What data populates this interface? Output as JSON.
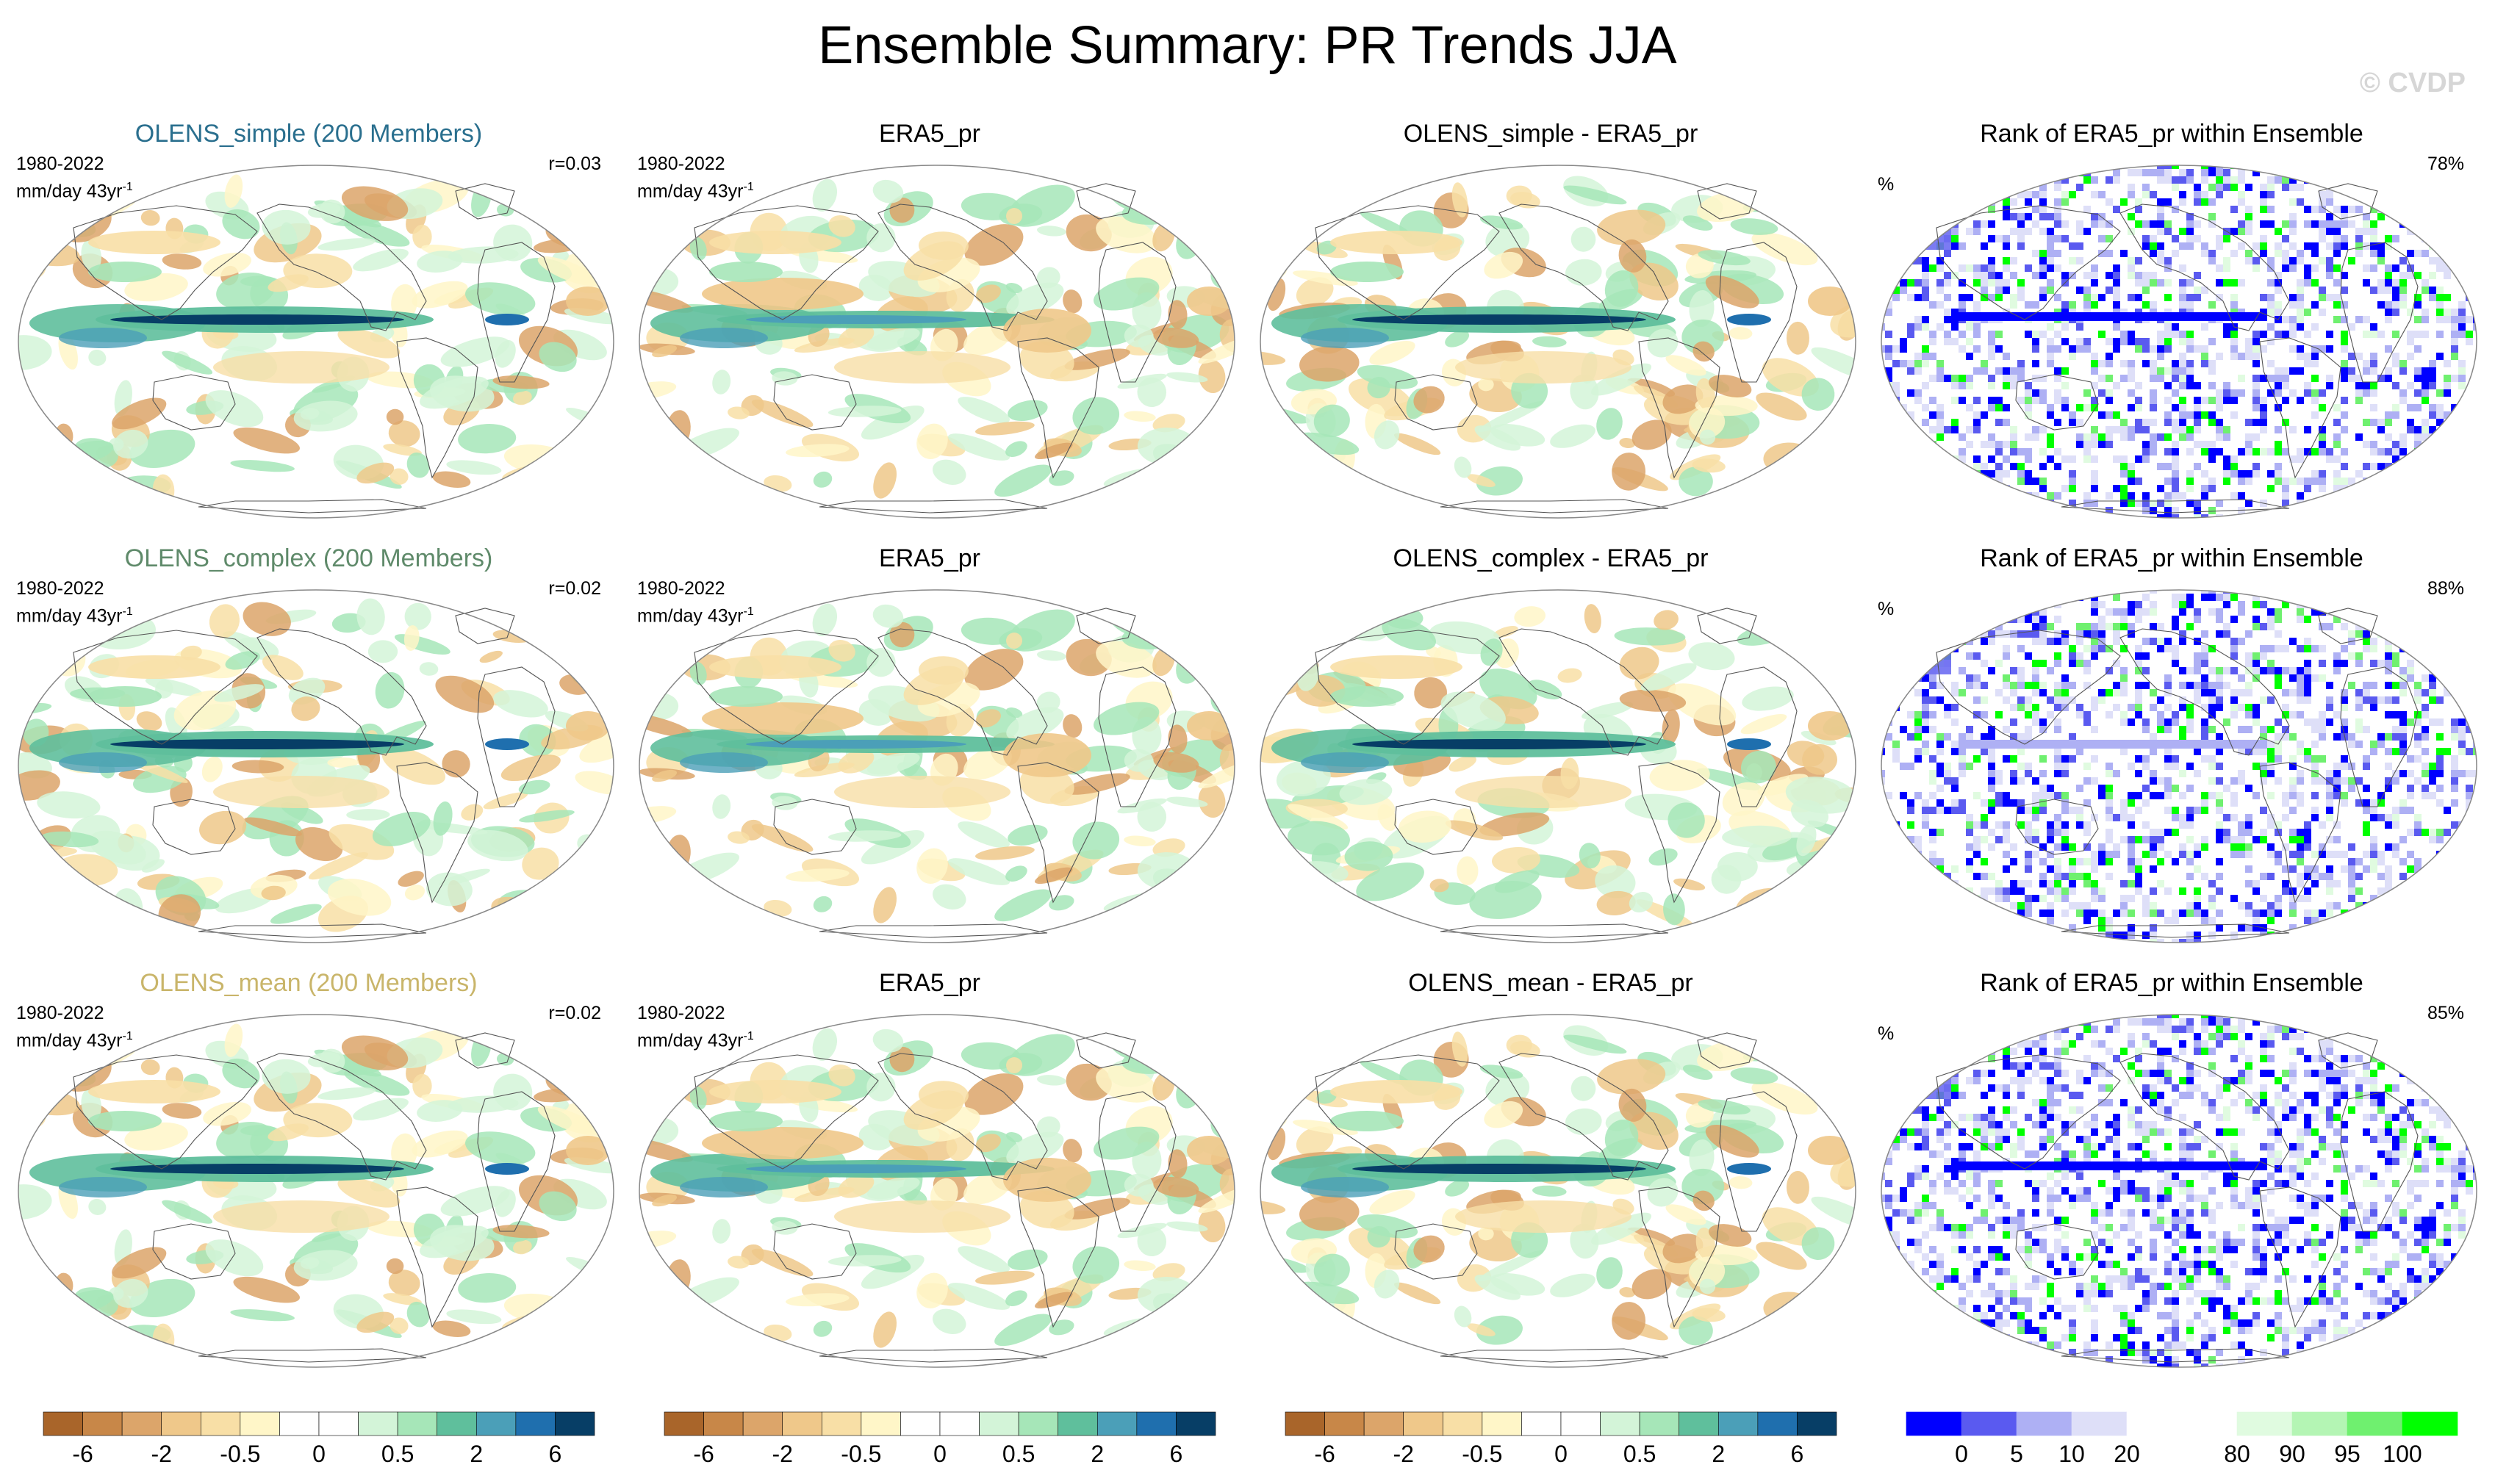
{
  "title": "Ensemble Summary: PR Trends JJA",
  "watermark": "© CVDP",
  "colors": {
    "title_simple": "#2a6f8e",
    "title_complex": "#5f8a6a",
    "title_mean": "#c9b56a",
    "trend_scale": [
      "#a9652a",
      "#c88748",
      "#dca56a",
      "#efc88a",
      "#f8dfa6",
      "#fff6c8",
      "#ffffff",
      "#ffffff",
      "#d3f4d8",
      "#a6e6b8",
      "#5fbf9c",
      "#4b9fb8",
      "#1f6fae",
      "#073e66"
    ],
    "rank_scale": [
      "#0000ff",
      "#5a5af0",
      "#aeb0f4",
      "#dedff8",
      "#ffffff",
      "#ffffff",
      "#e0fbe0",
      "#b4f5b4",
      "#6ff06f",
      "#00ff00"
    ]
  },
  "rows": [
    {
      "model_title": "OLENS_simple (200 Members)",
      "period": "1980-2022",
      "units": "mm/day 43yr",
      "units_sup": "-1",
      "pattern_corr": "r=0.03",
      "obs_title": "ERA5_pr",
      "diff_title": "OLENS_simple - ERA5_pr",
      "rank_title": "Rank of ERA5_pr within Ensemble",
      "rank_unit": "%",
      "rank_pct": "78%"
    },
    {
      "model_title": "OLENS_complex (200 Members)",
      "period": "1980-2022",
      "units": "mm/day 43yr",
      "units_sup": "-1",
      "pattern_corr": "r=0.02",
      "obs_title": "ERA5_pr",
      "diff_title": "OLENS_complex - ERA5_pr",
      "rank_title": "Rank of ERA5_pr within Ensemble",
      "rank_unit": "%",
      "rank_pct": "88%"
    },
    {
      "model_title": "OLENS_mean (200 Members)",
      "period": "1980-2022",
      "units": "mm/day 43yr",
      "units_sup": "-1",
      "pattern_corr": "r=0.02",
      "obs_title": "ERA5_pr",
      "diff_title": "OLENS_mean - ERA5_pr",
      "rank_title": "Rank of ERA5_pr within Ensemble",
      "rank_unit": "%",
      "rank_pct": "85%"
    }
  ],
  "colorbars": {
    "trend_labels": [
      "-6",
      "-2",
      "-0.5",
      "0",
      "0.5",
      "2",
      "6"
    ],
    "rank_labels": [
      "0",
      "5",
      "10",
      "20",
      "80",
      "90",
      "95",
      "100"
    ]
  }
}
